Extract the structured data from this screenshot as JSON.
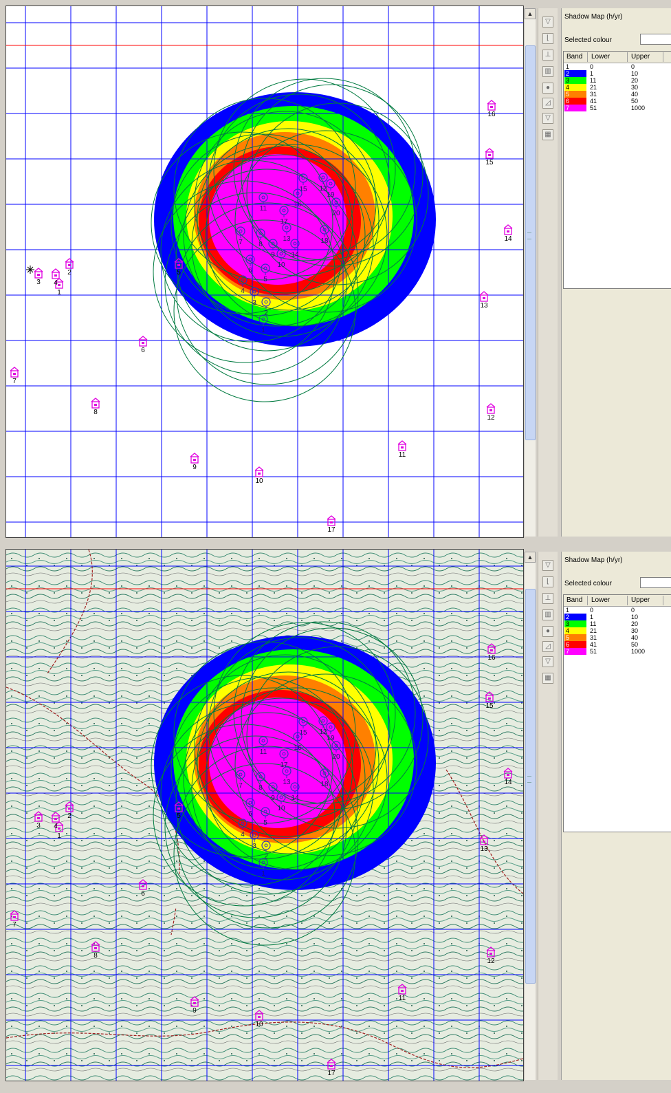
{
  "legend": {
    "title": "Shadow Map (h/yr)",
    "selected_colour_label": "Selected colour",
    "columns": {
      "band": "Band",
      "lower": "Lower",
      "upper": "Upper"
    },
    "bands": [
      {
        "band": "1",
        "lower": "0",
        "upper": "0",
        "color": "#ffffff"
      },
      {
        "band": "2",
        "lower": "1",
        "upper": "10",
        "color": "#0000ff"
      },
      {
        "band": "3",
        "lower": "11",
        "upper": "20",
        "color": "#00ff00"
      },
      {
        "band": "4",
        "lower": "21",
        "upper": "30",
        "color": "#ffff00"
      },
      {
        "band": "5",
        "lower": "31",
        "upper": "40",
        "color": "#ff8000"
      },
      {
        "band": "6",
        "lower": "41",
        "upper": "50",
        "color": "#ff0000"
      },
      {
        "band": "7",
        "lower": "51",
        "upper": "1000",
        "color": "#ff00ff"
      }
    ]
  },
  "toolbar": {
    "icons": [
      "filter-icon",
      "chart-icon",
      "turbine-icon",
      "building-icon",
      "circle-icon",
      "area-icon",
      "triangle-icon",
      "grid-icon"
    ]
  },
  "colors": {
    "grid": "#0000ff",
    "red_line": "#ff0000",
    "contour": "#007a40",
    "turbine": "#3030c0",
    "receptor": "#e000e0",
    "band_blue": "#0000ff",
    "band_green": "#00ff00",
    "band_yellow": "#ffff00",
    "band_orange": "#ff8000",
    "band_red": "#ff0000",
    "band_magenta": "#ff00ff"
  },
  "turbines": [
    {
      "id": "1"
    },
    {
      "id": "2"
    },
    {
      "id": "3"
    },
    {
      "id": "4"
    },
    {
      "id": "5"
    },
    {
      "id": "6"
    },
    {
      "id": "7"
    },
    {
      "id": "8"
    },
    {
      "id": "9"
    },
    {
      "id": "10"
    },
    {
      "id": "11"
    },
    {
      "id": "12"
    },
    {
      "id": "13"
    },
    {
      "id": "14"
    },
    {
      "id": "15"
    },
    {
      "id": "16"
    },
    {
      "id": "17"
    },
    {
      "id": "18"
    },
    {
      "id": "19"
    },
    {
      "id": "20"
    }
  ],
  "receptors": [
    {
      "id": "1"
    },
    {
      "id": "2"
    },
    {
      "id": "3"
    },
    {
      "id": "4"
    },
    {
      "id": "5"
    },
    {
      "id": "6"
    },
    {
      "id": "7"
    },
    {
      "id": "8"
    },
    {
      "id": "9"
    },
    {
      "id": "10"
    },
    {
      "id": "11"
    },
    {
      "id": "12"
    },
    {
      "id": "13"
    },
    {
      "id": "14"
    },
    {
      "id": "15"
    },
    {
      "id": "16"
    },
    {
      "id": "17"
    }
  ]
}
